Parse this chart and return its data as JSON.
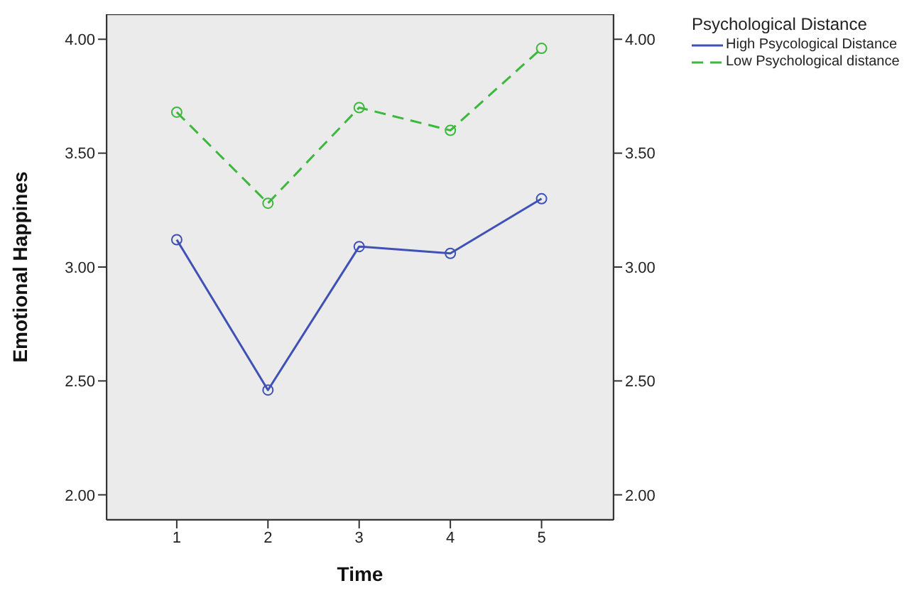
{
  "chart_data": {
    "type": "line",
    "xlabel": "Time",
    "ylabel": "Emotional Happines",
    "legend_title": "Psychological Distance",
    "x": [
      1,
      2,
      3,
      4,
      5
    ],
    "xlim": [
      0.23,
      5.79
    ],
    "xticks": [
      1,
      2,
      3,
      4,
      5
    ],
    "ylim": [
      1.89,
      4.11
    ],
    "yticks": [
      {
        "value": 2,
        "label": "2.00"
      },
      {
        "value": 2.5,
        "label": "2.50"
      },
      {
        "value": 3,
        "label": "3.00"
      },
      {
        "value": 3.5,
        "label": "3.50"
      },
      {
        "value": 4,
        "label": "4.00"
      }
    ],
    "y2lim": [
      1.89,
      4.11
    ],
    "y2ticks": [
      {
        "value": 2,
        "label": "2.00"
      },
      {
        "value": 2.5,
        "label": "2.50"
      },
      {
        "value": 3,
        "label": "3.00"
      },
      {
        "value": 3.5,
        "label": "3.50"
      },
      {
        "value": 4,
        "label": "4.00"
      }
    ],
    "series": [
      {
        "name": "High Psycological Distance",
        "color": "#3f51b5",
        "values": [
          3.12,
          2.46,
          3.09,
          3.06,
          3.3
        ],
        "line_style": "solid"
      },
      {
        "name": "Low Psychological distance",
        "color": "#3cb83c",
        "values": [
          3.68,
          3.28,
          3.7,
          3.6,
          3.96
        ],
        "line_style": "dashed"
      }
    ],
    "marker": "circle",
    "legend": "top right"
  }
}
